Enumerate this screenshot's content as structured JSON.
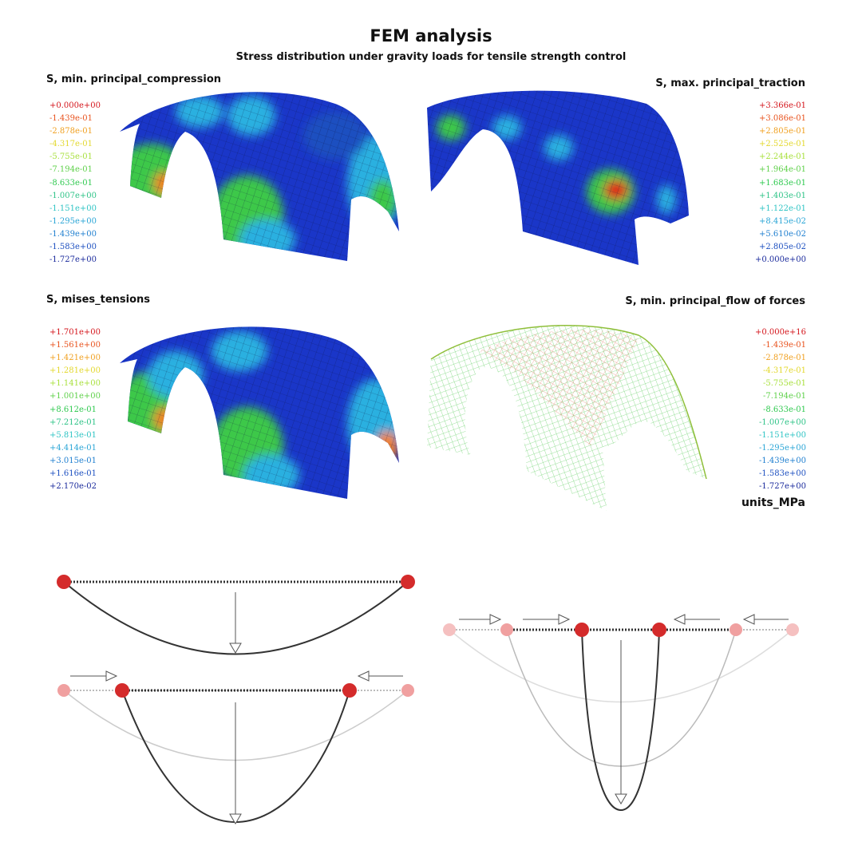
{
  "figure": {
    "title": "FEM analysis",
    "subtitle": "Stress distribution under gravity loads for tensile strength control",
    "units_label": "units_MPa"
  },
  "panels": [
    {
      "id": "compression",
      "title": "S, min. principal_compression",
      "legend_side": "left",
      "legend": [
        "+0.000e+00",
        "-1.439e-01",
        "-2.878e-01",
        "-4.317e-01",
        "-5.755e-01",
        "-7.194e-01",
        "-8.633e-01",
        "-1.007e+00",
        "-1.151e+00",
        "-1.295e+00",
        "-1.439e+00",
        "-1.583e+00",
        "-1.727e+00"
      ]
    },
    {
      "id": "traction",
      "title": "S, max. principal_traction",
      "legend_side": "right",
      "legend": [
        "+3.366e-01",
        "+3.086e-01",
        "+2.805e-01",
        "+2.525e-01",
        "+2.244e-01",
        "+1.964e-01",
        "+1.683e-01",
        "+1.403e-01",
        "+1.122e-01",
        "+8.415e-02",
        "+5.610e-02",
        "+2.805e-02",
        "+0.000e+00"
      ]
    },
    {
      "id": "mises",
      "title": "S, mises_tensions",
      "legend_side": "left",
      "legend": [
        "+1.701e+00",
        "+1.561e+00",
        "+1.421e+00",
        "+1.281e+00",
        "+1.141e+00",
        "+1.001e+00",
        "+8.612e-01",
        "+7.212e-01",
        "+5.813e-01",
        "+4.414e-01",
        "+3.015e-01",
        "+1.616e-01",
        "+2.170e-02"
      ]
    },
    {
      "id": "flow",
      "title": "S, min. principal_flow of forces",
      "legend_side": "right",
      "legend": [
        "+0.000e+16",
        "-1.439e-01",
        "-2.878e-01",
        "-4.317e-01",
        "-5.755e-01",
        "-7.194e-01",
        "-8.633e-01",
        "-1.007e+00",
        "-1.151e+00",
        "-1.295e+00",
        "-1.439e+00",
        "-1.583e+00",
        "-1.727e+00"
      ]
    }
  ],
  "legend_colors": [
    "#d4141b",
    "#e8521d",
    "#f0a020",
    "#e3d82e",
    "#a8e03c",
    "#5fd14a",
    "#2fc94f",
    "#2ec387",
    "#2fc4c4",
    "#2aa5d6",
    "#1f7fd0",
    "#1c4fc0",
    "#1a2a9c"
  ],
  "mesh_colors": {
    "deep_blue": "#1a36c8",
    "cyan": "#2ab0e0",
    "green": "#3cc84a",
    "yellow": "#e0e030",
    "orange": "#f08020",
    "red": "#e01818"
  },
  "diagram_colors": {
    "node_active": "#d42b2b",
    "node_faded": "#f0a0a0",
    "curve_active": "#333333",
    "curve_faded": "#bbbbbb"
  }
}
